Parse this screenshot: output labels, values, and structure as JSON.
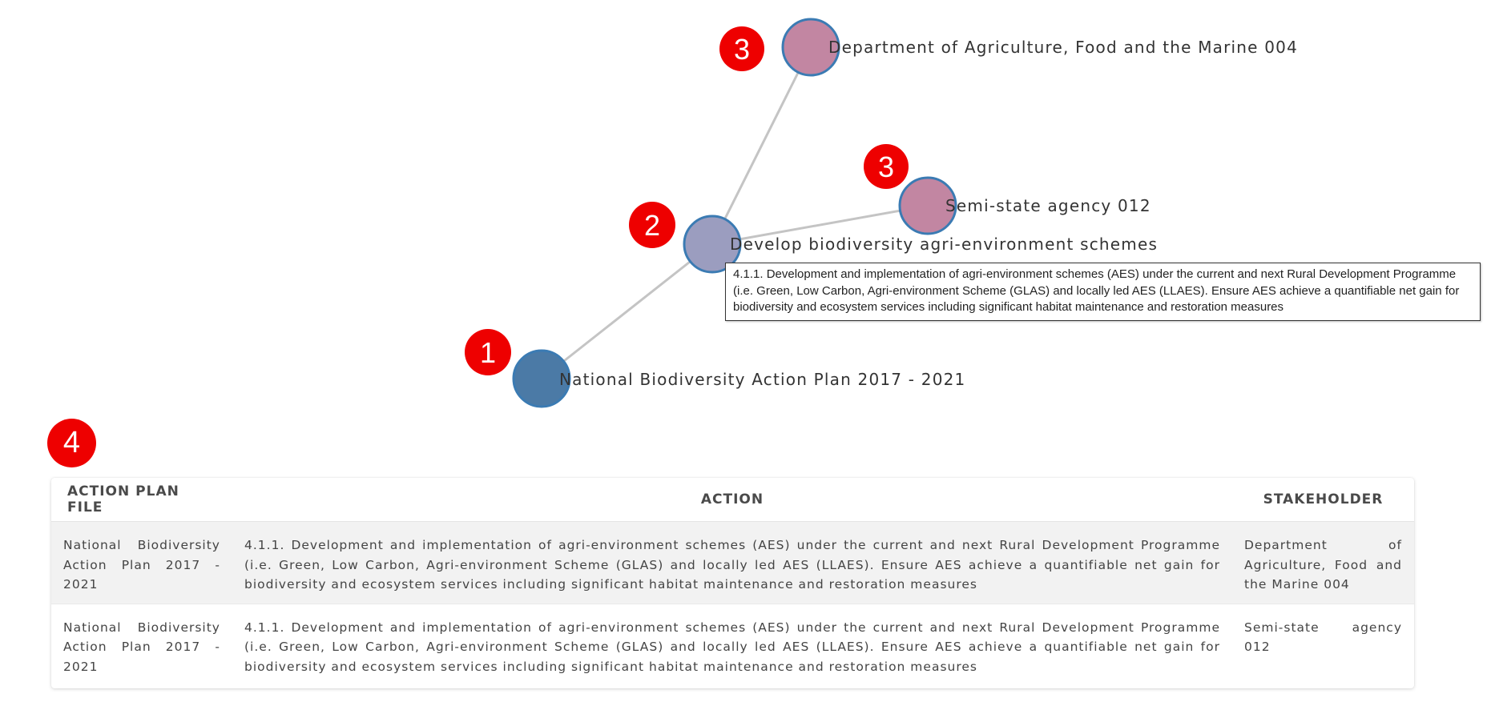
{
  "graph": {
    "nodes": [
      {
        "id": "plan",
        "label": "National Biodiversity Action Plan 2017 - 2021",
        "fill": "#4b7aa6",
        "badge": "1"
      },
      {
        "id": "action",
        "label": "Develop biodiversity agri-environment schemes",
        "fill": "#9b9dbf",
        "badge": "2"
      },
      {
        "id": "dept",
        "label": "Department of Agriculture, Food and the Marine 004",
        "fill": "#c286a2",
        "badge": "3"
      },
      {
        "id": "semi",
        "label": "Semi-state agency 012",
        "fill": "#c286a2",
        "badge": "3"
      }
    ],
    "edges": [
      {
        "source": "plan",
        "target": "action"
      },
      {
        "source": "action",
        "target": "dept"
      },
      {
        "source": "action",
        "target": "semi"
      }
    ],
    "node_stroke": "#3b7bb3",
    "edge_color": "#c4c4c4",
    "badge_color": "#ee0000"
  },
  "tooltip": {
    "text": "4.1.1. Development and implementation of agri-environment schemes (AES) under the current and next Rural Development Programme (i.e. Green, Low Carbon, Agri-environment Scheme (GLAS) and locally led AES (LLAES). Ensure AES achieve a quantifiable net gain for biodiversity and ecosystem services including significant habitat maintenance and restoration measures"
  },
  "table_badge": "4",
  "table": {
    "headers": {
      "file": "ACTION PLAN FILE",
      "action": "ACTION",
      "stakeholder": "STAKEHOLDER"
    },
    "rows": [
      {
        "file": "National Biodiversity Action Plan 2017 - 2021",
        "action": "4.1.1. Development and implementation of agri-environment schemes (AES) under the current and next Rural Development Programme (i.e. Green, Low Carbon, Agri-environment Scheme (GLAS) and locally led AES (LLAES). Ensure AES achieve a quantifiable net gain for biodiversity and ecosystem services including significant habitat maintenance and restoration measures",
        "stakeholder": "Department of Agriculture, Food and the Marine 004"
      },
      {
        "file": "National Biodiversity Action Plan 2017 - 2021",
        "action": "4.1.1. Development and implementation of agri-environment schemes (AES) under the current and next Rural Development Programme (i.e. Green, Low Carbon, Agri-environment Scheme (GLAS) and locally led AES (LLAES). Ensure AES achieve a quantifiable net gain for biodiversity and ecosystem services including significant habitat maintenance and restoration measures",
        "stakeholder": "Semi-state agency 012"
      }
    ]
  }
}
